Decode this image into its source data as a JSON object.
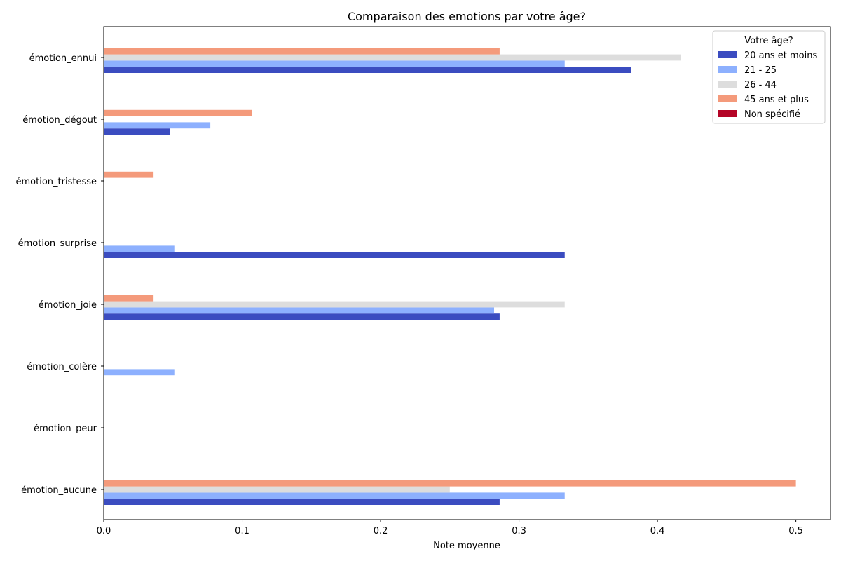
{
  "chart_data": {
    "type": "bar",
    "orientation": "horizontal",
    "title": "Comparaison des emotions par votre âge?",
    "xlabel": "Note moyenne",
    "ylabel": "",
    "xlim": [
      0,
      0.525
    ],
    "x_ticks": [
      "0.0",
      "0.1",
      "0.2",
      "0.3",
      "0.4",
      "0.5"
    ],
    "grid": false,
    "legend": {
      "title": "Votre âge?",
      "position": "top-right"
    },
    "categories": [
      "émotion_ennui",
      "émotion_dégout",
      "émotion_tristesse",
      "émotion_surprise",
      "émotion_joie",
      "émotion_colère",
      "émotion_peur",
      "émotion_aucune"
    ],
    "series": [
      {
        "name": "20 ans et moins",
        "color": "#3b4cc0",
        "values": [
          0.381,
          0.048,
          0,
          0.333,
          0.286,
          0,
          0,
          0.286
        ]
      },
      {
        "name": "21 - 25",
        "color": "#8db0fe",
        "values": [
          0.333,
          0.077,
          0,
          0.051,
          0.282,
          0.051,
          0,
          0.333
        ]
      },
      {
        "name": "26 - 44",
        "color": "#dddddd",
        "values": [
          0.417,
          0,
          0,
          0,
          0.333,
          0,
          0,
          0.25
        ]
      },
      {
        "name": "45 ans et plus",
        "color": "#f49a7b",
        "values": [
          0.286,
          0.107,
          0.036,
          0,
          0.036,
          0,
          0,
          0.5
        ]
      },
      {
        "name": "Non spécifié",
        "color": "#b40426",
        "values": [
          0,
          0,
          0,
          0,
          0,
          0,
          0,
          0
        ]
      }
    ]
  }
}
